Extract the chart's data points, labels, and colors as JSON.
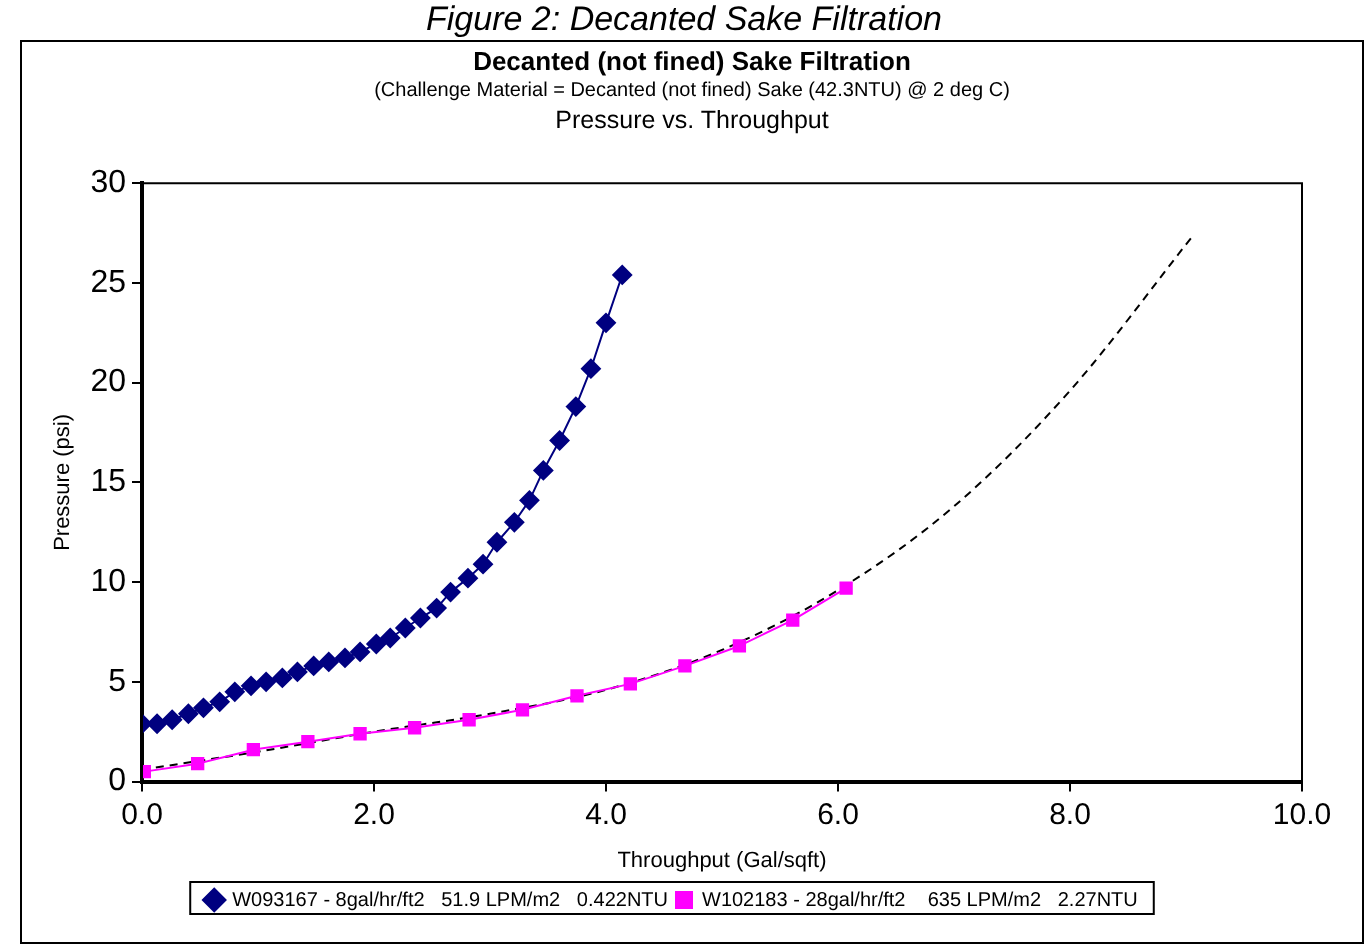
{
  "chart_data": {
    "type": "line",
    "title": "Figure 2:  Decanted Sake Filtration",
    "subtitle": "Decanted (not fined) Sake Filtration",
    "annotations": [
      "(Challenge Material = Decanted (not fined) Sake (42.3NTU) @ 2 deg C)",
      "Pressure vs. Throughput"
    ],
    "xlabel": "Throughput (Gal/sqft)",
    "ylabel": "Pressure (psi)",
    "xlim": [
      0,
      10
    ],
    "xticks": [
      {
        "value": 0,
        "label": "0.0"
      },
      {
        "value": 2,
        "label": "2.0"
      },
      {
        "value": 4,
        "label": "4.0"
      },
      {
        "value": 6,
        "label": "6.0"
      },
      {
        "value": 8,
        "label": "8.0"
      },
      {
        "value": 10,
        "label": "10.0"
      }
    ],
    "ylim": [
      0,
      30
    ],
    "yticks": [
      0,
      5,
      10,
      15,
      20,
      25,
      30
    ],
    "grid": false,
    "legend": "bottom",
    "line_style": "solid",
    "series": [
      {
        "name": "W093167 - 8gal/hr/ft2   51.9 LPM/m2   0.422NTU",
        "color": "#000080",
        "marker": "diamond",
        "x": [
          0.0,
          0.13,
          0.26,
          0.4,
          0.53,
          0.67,
          0.8,
          0.94,
          1.07,
          1.21,
          1.34,
          1.48,
          1.61,
          1.75,
          1.88,
          2.02,
          2.14,
          2.27,
          2.4,
          2.54,
          2.66,
          2.81,
          2.94,
          3.06,
          3.21,
          3.34,
          3.46,
          3.6,
          3.74,
          3.87,
          4.0,
          4.14
        ],
        "values": [
          2.9,
          2.9,
          3.1,
          3.4,
          3.7,
          4.0,
          4.5,
          4.8,
          5.0,
          5.2,
          5.5,
          5.8,
          6.0,
          6.2,
          6.5,
          6.9,
          7.2,
          7.7,
          8.2,
          8.7,
          9.5,
          10.2,
          10.9,
          12.0,
          13.0,
          14.1,
          15.6,
          17.1,
          18.8,
          20.7,
          23.0,
          25.4
        ]
      },
      {
        "name": "W102183 - 28gal/hr/ft2    635 LPM/m2   2.27NTU",
        "color": "#ff00ff",
        "marker": "square",
        "x": [
          0.02,
          0.48,
          0.96,
          1.43,
          1.88,
          2.35,
          2.82,
          3.28,
          3.75,
          4.21,
          4.68,
          5.15,
          5.61,
          6.07
        ],
        "values": [
          0.5,
          0.9,
          1.6,
          2.0,
          2.4,
          2.7,
          3.1,
          3.6,
          4.3,
          4.9,
          5.8,
          6.8,
          8.1,
          9.7
        ]
      },
      {
        "color": "#000000",
        "marker": "none",
        "line_style": "dashed",
        "x": [
          0,
          1,
          2,
          3,
          4,
          5,
          6,
          7,
          8,
          9.05
        ],
        "values": [
          0.6,
          1.5,
          2.5,
          3.4,
          4.6,
          6.6,
          9.6,
          13.8,
          19.6,
          27.3
        ]
      }
    ]
  }
}
